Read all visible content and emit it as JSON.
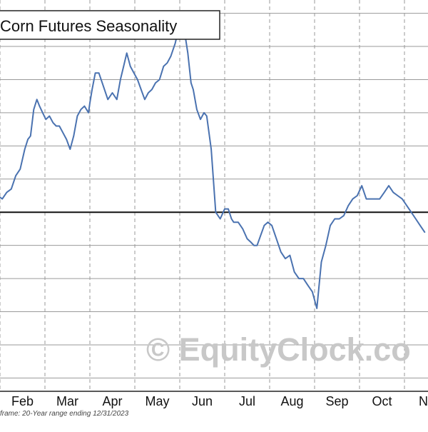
{
  "chart_data": {
    "type": "line",
    "title": "Corn Futures Seasonality",
    "watermark": "© EquityClock.co",
    "footnote": "frame: 20-Year range ending 12/31/2023",
    "xlabel": "",
    "ylabel": "",
    "x_month_labels": [
      "Feb",
      "Mar",
      "Apr",
      "May",
      "Jun",
      "Jul",
      "Aug",
      "Sep",
      "Oct",
      "No"
    ],
    "xlim_months": [
      0.95,
      10.45
    ],
    "ylim": [
      -0.054,
      0.064
    ],
    "y_grid_values": [
      -0.05,
      -0.04,
      -0.03,
      -0.02,
      -0.01,
      0,
      0.01,
      0.02,
      0.03,
      0.04,
      0.05,
      0.06
    ],
    "zero_line": 0,
    "grid": true,
    "colors": {
      "line": "#4a72b0",
      "grid": "#9a9a9a",
      "zero_line": "#111111",
      "frame": "#222222",
      "watermark": "#c8c8c8"
    },
    "series": [
      {
        "x": [
          0.95,
          1.05,
          1.15,
          1.25,
          1.35,
          1.45,
          1.55,
          1.62,
          1.68,
          1.75,
          1.82,
          1.88,
          1.95,
          2.02,
          2.1,
          2.18,
          2.25,
          2.32,
          2.4,
          2.48,
          2.56,
          2.64,
          2.72,
          2.8,
          2.88,
          2.97,
          3.0,
          3.05,
          3.12,
          3.2,
          3.3,
          3.4,
          3.5,
          3.6,
          3.68,
          3.75,
          3.82,
          3.9,
          3.98,
          4.06,
          4.14,
          4.22,
          4.3,
          4.38,
          4.46,
          4.55,
          4.64,
          4.72,
          4.8,
          4.9,
          5.0,
          5.1,
          5.18,
          5.25,
          5.3,
          5.38,
          5.46,
          5.54,
          5.6,
          5.7,
          5.8,
          5.9,
          6.0,
          6.08,
          6.15,
          6.2,
          6.3,
          6.4,
          6.5,
          6.58,
          6.65,
          6.72,
          6.8,
          6.88,
          6.96,
          7.05,
          7.15,
          7.25,
          7.35,
          7.45,
          7.55,
          7.65,
          7.75,
          7.85,
          7.95,
          8.05,
          8.15,
          8.25,
          8.35,
          8.45,
          8.55,
          8.65,
          8.75,
          8.85,
          8.95,
          9.05,
          9.15,
          9.25,
          9.35,
          9.45,
          9.55,
          9.65,
          9.75,
          9.85,
          9.95,
          10.05,
          10.15,
          10.25,
          10.35,
          10.45
        ],
        "y": [
          0.005,
          0.004,
          0.006,
          0.007,
          0.011,
          0.013,
          0.019,
          0.022,
          0.023,
          0.031,
          0.034,
          0.032,
          0.03,
          0.028,
          0.029,
          0.027,
          0.026,
          0.026,
          0.024,
          0.022,
          0.019,
          0.023,
          0.029,
          0.031,
          0.032,
          0.03,
          0.033,
          0.037,
          0.042,
          0.042,
          0.038,
          0.034,
          0.036,
          0.034,
          0.04,
          0.044,
          0.048,
          0.044,
          0.042,
          0.04,
          0.037,
          0.034,
          0.036,
          0.037,
          0.039,
          0.04,
          0.044,
          0.045,
          0.047,
          0.051,
          0.057,
          0.055,
          0.048,
          0.039,
          0.037,
          0.031,
          0.028,
          0.03,
          0.029,
          0.019,
          0.0,
          -0.002,
          0.001,
          0.001,
          -0.002,
          -0.003,
          -0.003,
          -0.005,
          -0.008,
          -0.009,
          -0.01,
          -0.01,
          -0.007,
          -0.004,
          -0.003,
          -0.004,
          -0.008,
          -0.012,
          -0.014,
          -0.013,
          -0.018,
          -0.02,
          -0.02,
          -0.022,
          -0.024,
          -0.029,
          -0.015,
          -0.01,
          -0.004,
          -0.002,
          -0.002,
          -0.001,
          0.002,
          0.004,
          0.005,
          0.008,
          0.004,
          0.004,
          0.004,
          0.004,
          0.006,
          0.008,
          0.006,
          0.005,
          0.004,
          0.002,
          0.0,
          -0.002,
          -0.004,
          -0.006
        ]
      }
    ]
  }
}
